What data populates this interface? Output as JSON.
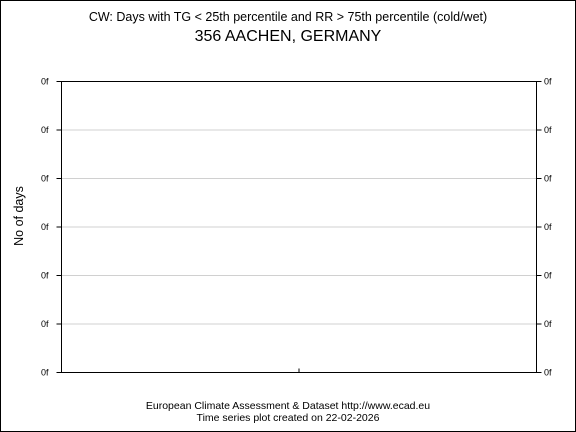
{
  "header": {
    "title": "CW: Days with TG < 25th percentile and RR > 75th percentile (cold/wet)",
    "station": "356 AACHEN, GERMANY"
  },
  "footer": {
    "line1": "European Climate Assessment & Dataset  http://www.ecad.eu",
    "line2": "Time series plot created on 22-02-2026"
  },
  "chart_data": {
    "type": "line",
    "title": "CW: Days with TG < 25th percentile and RR > 75th percentile (cold/wet)",
    "subtitle": "356 AACHEN, GERMANY",
    "xlabel": "",
    "ylabel": "No of days",
    "y_tick_labels": [
      "0f",
      "0f",
      "0f",
      "0f",
      "0f",
      "0f",
      "0f"
    ],
    "x_tick_count": 1,
    "series": [],
    "grid": true,
    "mirrored_right_axis": true
  }
}
